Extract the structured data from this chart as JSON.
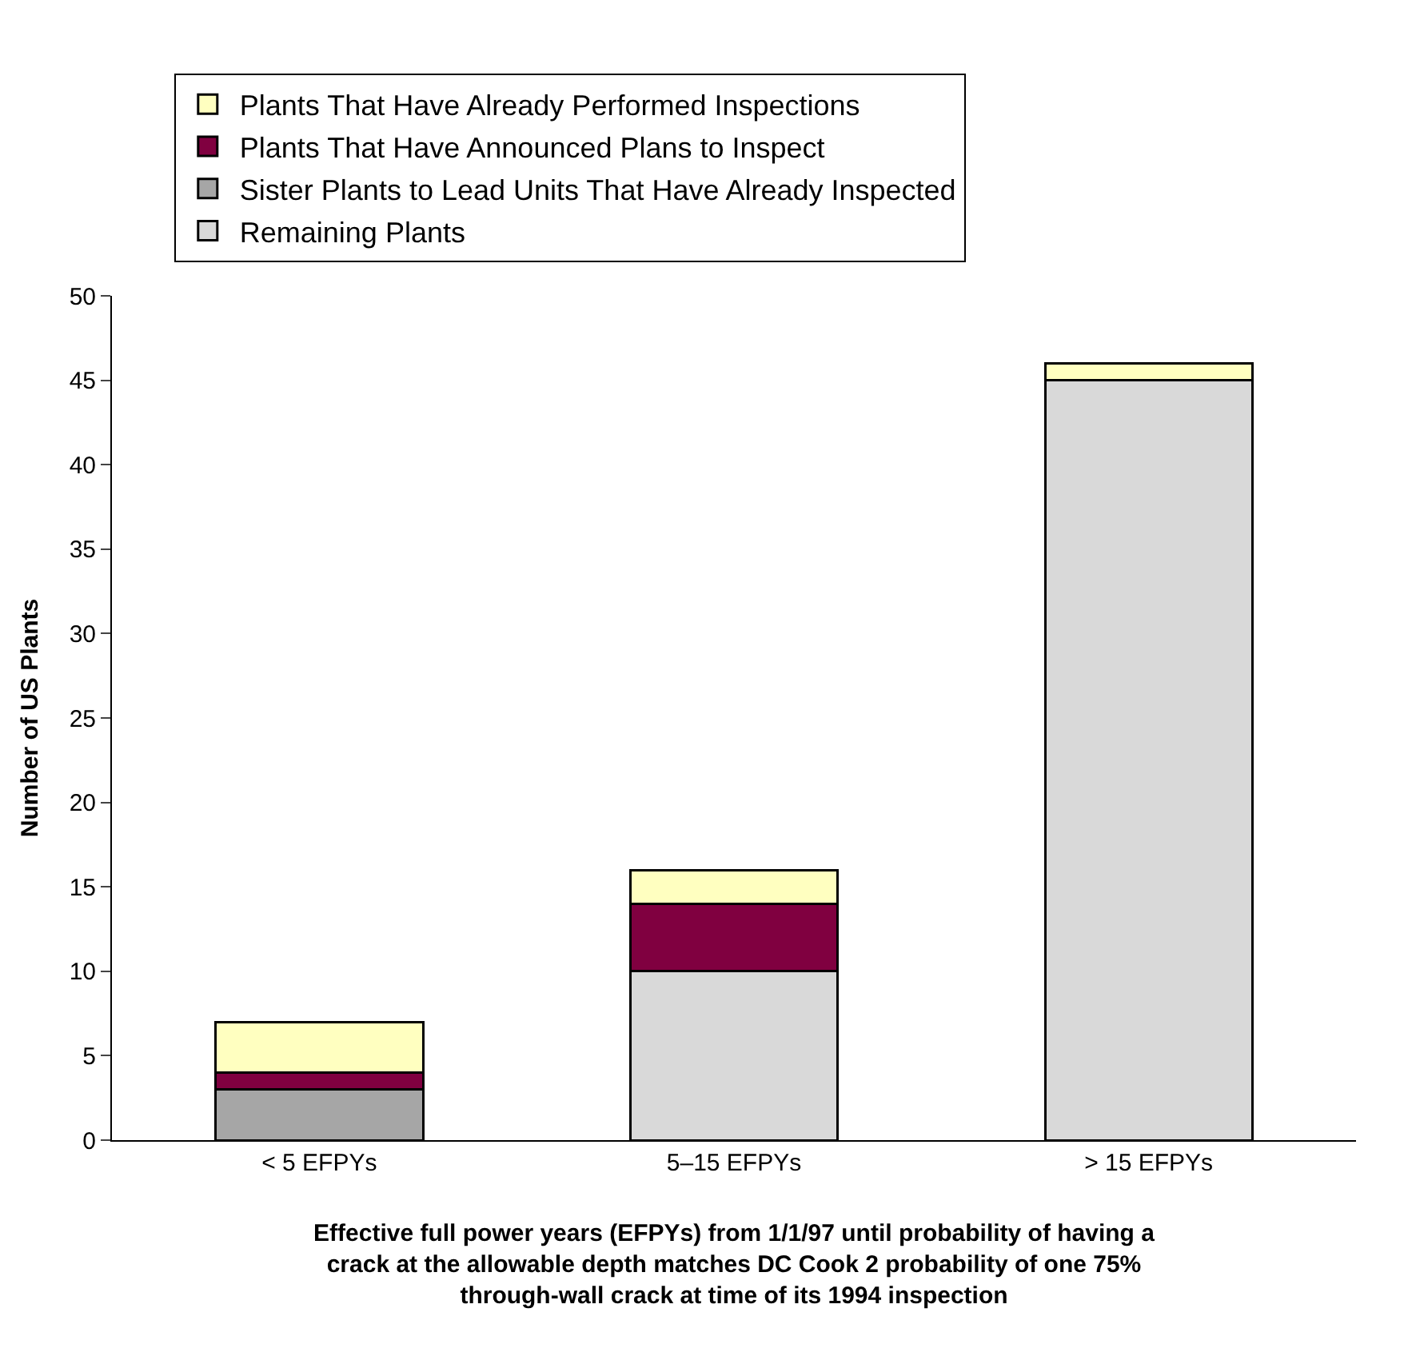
{
  "chart_data": {
    "type": "bar",
    "stacked": true,
    "categories": [
      "< 5 EFPYs",
      "5–15 EFPYs",
      "> 15 EFPYs"
    ],
    "series": [
      {
        "name": "Remaining Plants",
        "color": "#d9d9d9",
        "values": [
          0,
          10,
          45
        ]
      },
      {
        "name": "Sister Plants to Lead Units That Have Already Inspected",
        "color": "#a6a6a6",
        "values": [
          3,
          0,
          0
        ]
      },
      {
        "name": "Plants That Have Announced Plans to Inspect",
        "color": "#800040",
        "values": [
          1,
          4,
          0
        ]
      },
      {
        "name": "Plants That Have Already Performed Inspections",
        "color": "#ffffc0",
        "values": [
          3,
          2,
          1
        ]
      }
    ],
    "ylabel": "Number of US Plants",
    "xlabel": "Effective full power years (EFPYs) from 1/1/97 until probability of having a\ncrack at the allowable depth matches DC Cook 2 probability of one 75%\nthrough-wall crack at time of its 1994 inspection",
    "ylim": [
      0,
      50
    ],
    "yticks": [
      0,
      5,
      10,
      15,
      20,
      25,
      30,
      35,
      40,
      45,
      50
    ],
    "grid": false,
    "legend": "top"
  }
}
